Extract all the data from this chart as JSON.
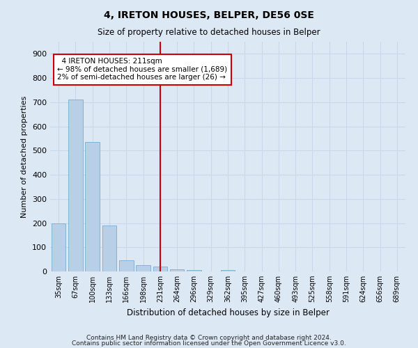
{
  "title": "4, IRETON HOUSES, BELPER, DE56 0SE",
  "subtitle": "Size of property relative to detached houses in Belper",
  "xlabel": "Distribution of detached houses by size in Belper",
  "ylabel": "Number of detached properties",
  "footnote1": "Contains HM Land Registry data © Crown copyright and database right 2024.",
  "footnote2": "Contains public sector information licensed under the Open Government Licence v3.0.",
  "bin_labels": [
    "35sqm",
    "67sqm",
    "100sqm",
    "133sqm",
    "166sqm",
    "198sqm",
    "231sqm",
    "264sqm",
    "296sqm",
    "329sqm",
    "362sqm",
    "395sqm",
    "427sqm",
    "460sqm",
    "493sqm",
    "525sqm",
    "558sqm",
    "591sqm",
    "624sqm",
    "656sqm",
    "689sqm"
  ],
  "bar_values": [
    200,
    710,
    535,
    190,
    45,
    25,
    20,
    10,
    5,
    0,
    5,
    0,
    0,
    0,
    0,
    0,
    0,
    0,
    0,
    0,
    0
  ],
  "bar_color": "#b8cfe8",
  "bar_edgecolor": "#7aaad0",
  "grid_color": "#c8d8e8",
  "vline_x": 6.0,
  "vline_color": "#cc0000",
  "annotation_text": "  4 IRETON HOUSES: 211sqm\n← 98% of detached houses are smaller (1,689)\n2% of semi-detached houses are larger (26) →",
  "annotation_box_color": "#cc0000",
  "ylim": [
    0,
    950
  ],
  "yticks": [
    0,
    100,
    200,
    300,
    400,
    500,
    600,
    700,
    800,
    900
  ],
  "bg_color": "#dde8f5",
  "plot_bg_color": "#dde8f5"
}
